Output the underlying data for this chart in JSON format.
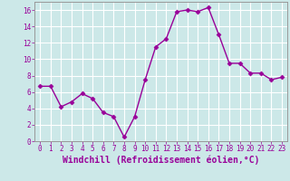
{
  "x": [
    0,
    1,
    2,
    3,
    4,
    5,
    6,
    7,
    8,
    9,
    10,
    11,
    12,
    13,
    14,
    15,
    16,
    17,
    18,
    19,
    20,
    21,
    22,
    23
  ],
  "y": [
    6.7,
    6.7,
    4.2,
    4.8,
    5.8,
    5.2,
    3.5,
    3.0,
    0.5,
    3.0,
    7.5,
    11.5,
    12.5,
    15.8,
    16.0,
    15.8,
    16.3,
    13.0,
    9.5,
    9.5,
    8.3,
    8.3,
    7.5,
    7.8
  ],
  "line_color": "#990099",
  "marker": "D",
  "markersize": 2.5,
  "linewidth": 1.0,
  "xlabel": "Windchill (Refroidissement éolien,°C)",
  "xlabel_fontsize": 7,
  "xlabel_color": "#990099",
  "xlim": [
    -0.5,
    23.5
  ],
  "ylim": [
    0,
    17
  ],
  "yticks": [
    0,
    2,
    4,
    6,
    8,
    10,
    12,
    14,
    16
  ],
  "xticks": [
    0,
    1,
    2,
    3,
    4,
    5,
    6,
    7,
    8,
    9,
    10,
    11,
    12,
    13,
    14,
    15,
    16,
    17,
    18,
    19,
    20,
    21,
    22,
    23
  ],
  "background_color": "#cce8e8",
  "grid_color": "#aacccc",
  "spine_color": "#999999",
  "tick_color": "#990099",
  "tick_fontsize": 5.5,
  "tick_fontfamily": "monospace"
}
